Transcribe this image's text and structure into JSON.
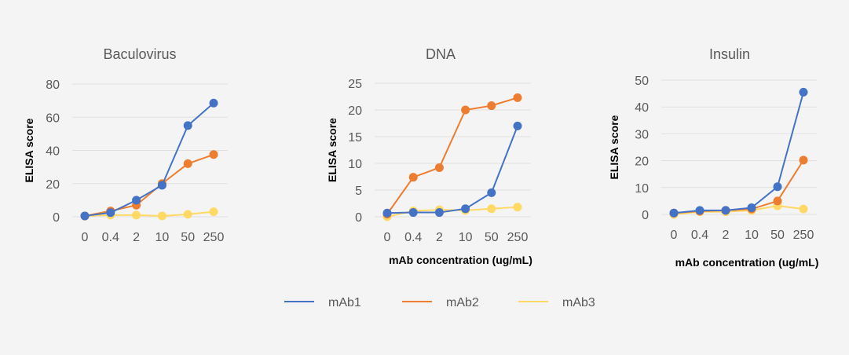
{
  "colors": {
    "mAb1": "#4472c4",
    "mAb2": "#ed7d31",
    "mAb3": "#ffd966"
  },
  "legend": [
    "mAb1",
    "mAb2",
    "mAb3"
  ],
  "chart_data": [
    {
      "type": "line",
      "title": "Baculovirus",
      "xlabel": "",
      "ylabel": "ELISA score",
      "categories": [
        "0",
        "0.4",
        "2",
        "10",
        "50",
        "250"
      ],
      "yticks": [
        0,
        20,
        40,
        60,
        80
      ],
      "ylim": [
        0,
        80
      ],
      "grid": true,
      "series": [
        {
          "name": "mAb1",
          "values": [
            0.5,
            2.5,
            10,
            19,
            55,
            68.5
          ]
        },
        {
          "name": "mAb2",
          "values": [
            0.5,
            3.5,
            7,
            20,
            32,
            37.5
          ]
        },
        {
          "name": "mAb3",
          "values": [
            0.5,
            1,
            1,
            0.5,
            1.5,
            3
          ]
        }
      ]
    },
    {
      "type": "line",
      "title": "DNA",
      "xlabel": "mAb concentration (ug/mL)",
      "ylabel": "ELISA score",
      "categories": [
        "0",
        "0.4",
        "2",
        "10",
        "50",
        "250"
      ],
      "yticks": [
        0,
        5,
        10,
        15,
        20,
        25
      ],
      "ylim": [
        0,
        25
      ],
      "grid": true,
      "series": [
        {
          "name": "mAb1",
          "values": [
            0.7,
            0.8,
            0.8,
            1.5,
            4.5,
            17
          ]
        },
        {
          "name": "mAb2",
          "values": [
            0.5,
            7.4,
            9.2,
            20,
            20.8,
            22.3
          ]
        },
        {
          "name": "mAb3",
          "values": [
            0,
            1.1,
            1.3,
            1.2,
            1.5,
            1.8
          ]
        }
      ]
    },
    {
      "type": "line",
      "title": "Insulin",
      "xlabel": "mAb concentration (ug/mL)",
      "ylabel": "ELISA score",
      "categories": [
        "0",
        "0.4",
        "2",
        "10",
        "50",
        "250"
      ],
      "yticks": [
        0,
        10,
        20,
        30,
        40,
        50
      ],
      "ylim": [
        0,
        50
      ],
      "grid": true,
      "series": [
        {
          "name": "mAb1",
          "values": [
            0.5,
            1.5,
            1.5,
            2.5,
            10.3,
            45.5
          ]
        },
        {
          "name": "mAb2",
          "values": [
            0.5,
            1.2,
            1.5,
            2,
            5,
            20.2
          ]
        },
        {
          "name": "mAb3",
          "values": [
            0,
            1,
            1,
            1.5,
            3.2,
            2
          ]
        }
      ]
    }
  ]
}
